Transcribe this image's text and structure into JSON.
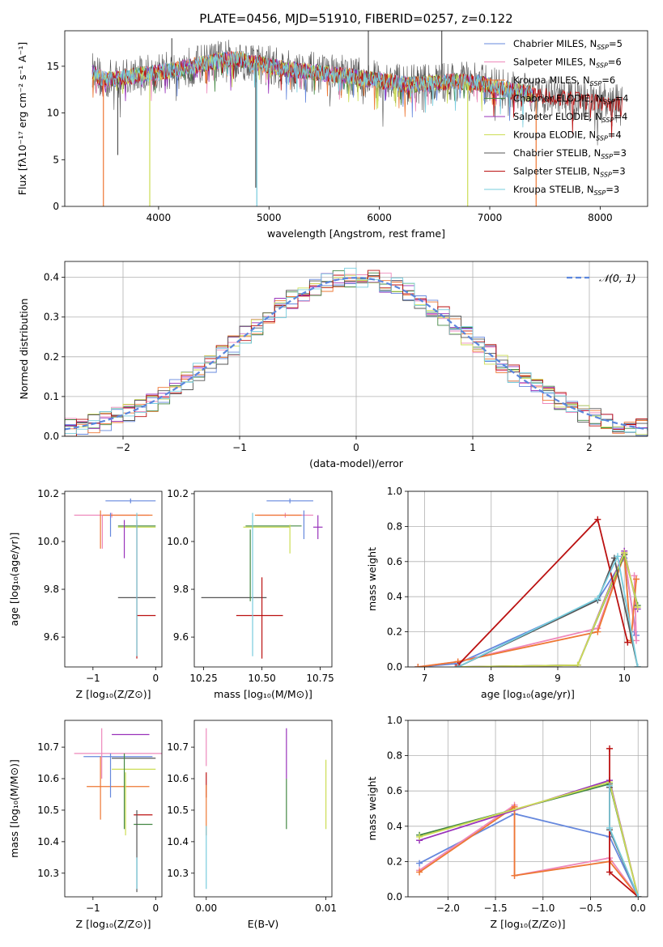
{
  "chart_data": [
    {
      "type": "line",
      "title": "PLATE=0456, MJD=51910, FIBERID=0257, z=0.122",
      "xlabel": "wavelength [Angstrom, rest frame]",
      "ylabel": "Flux [fλ10⁻¹⁷ erg cm⁻² s⁻¹ A⁻¹]",
      "xlim": [
        3150,
        8430
      ],
      "ylim": [
        0,
        18.8
      ],
      "xticks": [
        "4000",
        "5000",
        "6000",
        "7000",
        "8000"
      ],
      "yticks": [
        "0",
        "5",
        "10",
        "15"
      ],
      "legend_position": "upper-right",
      "series": [
        {
          "name": "Chabrier MILES, N_SSP=5",
          "color": "#6688dd"
        },
        {
          "name": "Salpeter MILES, N_SSP=6",
          "color": "#ee88bb"
        },
        {
          "name": "Kroupa MILES, N_SSP=6",
          "color": "#ee7733"
        },
        {
          "name": "Chabrier ELODIE, N_SSP=4",
          "color": "#448844"
        },
        {
          "name": "Salpeter ELODIE, N_SSP=4",
          "color": "#9933bb"
        },
        {
          "name": "Kroupa ELODIE, N_SSP=4",
          "color": "#ccdd55"
        },
        {
          "name": "Chabrier STELIB, N_SSP=3",
          "color": "#555555"
        },
        {
          "name": "Salpeter STELIB, N_SSP=3",
          "color": "#bb1111"
        },
        {
          "name": "Kroupa STELIB, N_SSP=3",
          "color": "#77ccdd"
        }
      ],
      "spectrum_profile": {
        "x": [
          3400,
          3500,
          3700,
          3900,
          4100,
          4300,
          4500,
          4700,
          4900,
          5100,
          5300,
          5500,
          5700,
          5900,
          6100,
          6300,
          6500,
          6700,
          6900,
          7100,
          7300,
          7500,
          7700,
          7900,
          8100,
          8200
        ],
        "y": [
          14.5,
          13.5,
          13.8,
          14.2,
          14.5,
          15.0,
          15.5,
          15.8,
          15.3,
          14.8,
          14.5,
          14.2,
          14.0,
          13.6,
          13.3,
          13.0,
          13.2,
          13.4,
          13.2,
          12.6,
          12.2,
          11.8,
          11.5,
          11.2,
          11.0,
          10.8
        ]
      },
      "spikes": [
        {
          "x": 3500,
          "y": 0,
          "color": "#ee7733"
        },
        {
          "x": 3920,
          "y": 0,
          "color": "#ccdd55"
        },
        {
          "x": 4890,
          "y": 0,
          "color": "#77ccdd"
        },
        {
          "x": 6800,
          "y": 0,
          "color": "#ccdd55"
        },
        {
          "x": 7420,
          "y": 0,
          "color": "#ee7733"
        },
        {
          "x": 3630,
          "y": 5.5,
          "color": "#555555"
        },
        {
          "x": 4880,
          "y": 2.0,
          "color": "#555555"
        },
        {
          "x": 6565,
          "y": 18.8,
          "color": "#555555"
        },
        {
          "x": 5900,
          "y": 18.8,
          "color": "#555555"
        },
        {
          "x": 4120,
          "y": 18.0,
          "color": "#555555"
        }
      ]
    },
    {
      "type": "step",
      "xlabel": "(data-model)/error",
      "ylabel": "Normed distribution",
      "xlim": [
        -2.5,
        2.5
      ],
      "ylim": [
        0,
        0.44
      ],
      "xticks": [
        "−2",
        "−1",
        "0",
        "1",
        "2"
      ],
      "yticks": [
        "0.0",
        "0.1",
        "0.2",
        "0.3",
        "0.4"
      ],
      "legend": "𝒩(0, 1)",
      "legend_position": "upper-right",
      "gaussian": {
        "mean": 0,
        "sigma": 1
      },
      "bin_width": 0.1
    },
    {
      "type": "errorbar",
      "xlabel": "Z [log₁₀(Z/Z⊙)]",
      "ylabel": "age  [log₁₀(age/yr)]",
      "xlim": [
        -1.45,
        0.1
      ],
      "ylim": [
        9.475,
        10.21
      ],
      "xticks": [
        "−1",
        "0"
      ],
      "yticks": [
        "9.6",
        "9.8",
        "10.0",
        "10.2"
      ],
      "points": [
        {
          "x": -0.4,
          "xerr": 0.4,
          "y": 10.17,
          "yerr": 0.01,
          "color": "#6688dd"
        },
        {
          "x": -0.7,
          "xerr": 0.6,
          "y": 10.11,
          "yerr": 0.01,
          "color": "#ee88bb"
        },
        {
          "x": -0.45,
          "xerr": 0.4,
          "y": 10.11,
          "yerr": 0.0,
          "color": "#ee7733"
        },
        {
          "x": -0.3,
          "xerr": 0.3,
          "y": 10.065,
          "yerr": 0.0,
          "color": "#448844"
        },
        {
          "x": -0.3,
          "xerr": 0.3,
          "y": 10.06,
          "yerr": 0.0,
          "color": "#ccdd55"
        },
        {
          "x": -0.3,
          "xerr": 0.3,
          "y": 9.765,
          "yerr": 0.0,
          "color": "#555555"
        },
        {
          "x": -0.15,
          "xerr": 0.15,
          "y": 9.69,
          "yerr": 0.0,
          "color": "#bb1111"
        },
        {
          "x": -0.72,
          "xerr": 0.0,
          "y": 10.07,
          "yerr": 0.05,
          "color": "#6688dd"
        },
        {
          "x": -0.88,
          "xerr": 0.0,
          "y": 10.05,
          "yerr": 0.08,
          "color": "#ee7733"
        },
        {
          "x": -0.85,
          "xerr": 0.0,
          "y": 10.04,
          "yerr": 0.07,
          "color": "#ee88bb"
        },
        {
          "x": -0.5,
          "xerr": 0.0,
          "y": 10.01,
          "yerr": 0.08,
          "color": "#9933bb"
        },
        {
          "x": -0.3,
          "xerr": 0.0,
          "y": 9.8,
          "yerr": 0.29,
          "color": "#bb1111"
        },
        {
          "x": -0.3,
          "xerr": 0.0,
          "y": 9.82,
          "yerr": 0.3,
          "color": "#77ccdd"
        }
      ]
    },
    {
      "type": "errorbar",
      "xlabel": "mass [log₁₀(M/M⊙)]",
      "xlim": [
        10.21,
        10.8
      ],
      "ylim": [
        9.475,
        10.21
      ],
      "xticks": [
        "10.25",
        "10.50",
        "10.75"
      ],
      "yticks": [
        "9.6",
        "9.8",
        "10.0",
        "10.2"
      ],
      "points": [
        {
          "x": 10.62,
          "xerr": 0.1,
          "y": 10.17,
          "yerr": 0.01,
          "color": "#6688dd"
        },
        {
          "x": 10.6,
          "xerr": 0.12,
          "y": 10.11,
          "yerr": 0.01,
          "color": "#ee88bb"
        },
        {
          "x": 10.57,
          "xerr": 0.1,
          "y": 10.11,
          "yerr": 0.0,
          "color": "#ee7733"
        },
        {
          "x": 10.55,
          "xerr": 0.12,
          "y": 10.065,
          "yerr": 0.0,
          "color": "#448844"
        },
        {
          "x": 10.52,
          "xerr": 0.1,
          "y": 10.06,
          "yerr": 0.0,
          "color": "#ccdd55"
        },
        {
          "x": 10.38,
          "xerr": 0.14,
          "y": 9.765,
          "yerr": 0.0,
          "color": "#555555"
        },
        {
          "x": 10.49,
          "xerr": 0.1,
          "y": 9.69,
          "yerr": 0.0,
          "color": "#bb1111"
        },
        {
          "x": 10.74,
          "xerr": 0.02,
          "y": 10.06,
          "yerr": 0.05,
          "color": "#9933bb"
        },
        {
          "x": 10.68,
          "xerr": 0.0,
          "y": 10.07,
          "yerr": 0.06,
          "color": "#6688dd"
        },
        {
          "x": 10.46,
          "xerr": 0.0,
          "y": 9.82,
          "yerr": 0.3,
          "color": "#77ccdd"
        },
        {
          "x": 10.5,
          "xerr": 0.0,
          "y": 9.68,
          "yerr": 0.17,
          "color": "#bb1111"
        },
        {
          "x": 10.45,
          "xerr": 0.0,
          "y": 9.9,
          "yerr": 0.15,
          "color": "#448844"
        },
        {
          "x": 10.62,
          "xerr": 0.0,
          "y": 10.01,
          "yerr": 0.06,
          "color": "#ccdd55"
        }
      ]
    },
    {
      "type": "line",
      "xlabel": "age  [log₁₀(age/yr)]",
      "ylabel": "mass weight",
      "xlim": [
        6.75,
        10.35
      ],
      "ylim": [
        0,
        1.0
      ],
      "xticks": [
        "7",
        "8",
        "9",
        "10"
      ],
      "yticks": [
        "0.0",
        "0.2",
        "0.4",
        "0.6",
        "0.8",
        "1.0"
      ],
      "series": [
        {
          "color": "#6688dd",
          "x": [
            6.9,
            7.5,
            9.6,
            10.0,
            10.18,
            10.15
          ],
          "y": [
            0.0,
            0.02,
            0.38,
            0.62,
            0.18,
            0.2
          ]
        },
        {
          "color": "#ee88bb",
          "x": [
            6.9,
            7.5,
            9.6,
            10.0,
            10.18,
            10.15
          ],
          "y": [
            0.0,
            0.03,
            0.22,
            0.65,
            0.15,
            0.52
          ]
        },
        {
          "color": "#ee7733",
          "x": [
            6.9,
            7.5,
            9.6,
            10.0,
            10.1,
            10.18
          ],
          "y": [
            0.0,
            0.03,
            0.2,
            0.64,
            0.15,
            0.5
          ]
        },
        {
          "color": "#448844",
          "x": [
            7.5,
            9.3,
            10.0,
            10.2
          ],
          "y": [
            0.0,
            0.01,
            0.64,
            0.35
          ]
        },
        {
          "color": "#9933bb",
          "x": [
            7.5,
            9.3,
            10.0,
            10.2
          ],
          "y": [
            0.0,
            0.01,
            0.66,
            0.33
          ]
        },
        {
          "color": "#ccdd55",
          "x": [
            7.5,
            9.3,
            10.0,
            10.2
          ],
          "y": [
            0.0,
            0.01,
            0.65,
            0.34
          ]
        },
        {
          "color": "#555555",
          "x": [
            7.5,
            9.6,
            9.85,
            10.2
          ],
          "y": [
            0.0,
            0.38,
            0.62,
            0.0
          ]
        },
        {
          "color": "#bb1111",
          "x": [
            7.5,
            9.6,
            10.05
          ],
          "y": [
            0.01,
            0.84,
            0.14
          ]
        },
        {
          "color": "#77ccdd",
          "x": [
            7.5,
            9.6,
            9.9,
            10.2
          ],
          "y": [
            0.0,
            0.39,
            0.63,
            0.0
          ]
        }
      ]
    },
    {
      "type": "errorbar",
      "xlabel": "Z [log₁₀(Z/Z⊙)]",
      "ylabel": "mass [log₁₀(M/M⊙)]",
      "xlim": [
        -1.45,
        0.1
      ],
      "ylim": [
        10.225,
        10.785
      ],
      "xticks": [
        "−1",
        "0"
      ],
      "yticks": [
        "10.3",
        "10.4",
        "10.5",
        "10.6",
        "10.7"
      ],
      "points": [
        {
          "x": -0.55,
          "xerr": 0.75,
          "y": 10.68,
          "yerr": 0.0,
          "color": "#ee88bb"
        },
        {
          "x": -0.4,
          "xerr": 0.3,
          "y": 10.74,
          "yerr": 0.0,
          "color": "#9933bb"
        },
        {
          "x": -0.6,
          "xerr": 0.55,
          "y": 10.67,
          "yerr": 0.0,
          "color": "#6688dd"
        },
        {
          "x": -0.35,
          "xerr": 0.35,
          "y": 10.665,
          "yerr": 0.0,
          "color": "#555555"
        },
        {
          "x": -0.35,
          "xerr": 0.35,
          "y": 10.63,
          "yerr": 0.0,
          "color": "#ccdd55"
        },
        {
          "x": -0.6,
          "xerr": 0.5,
          "y": 10.575,
          "yerr": 0.0,
          "color": "#ee7733"
        },
        {
          "x": -0.2,
          "xerr": 0.15,
          "y": 10.485,
          "yerr": 0.0,
          "color": "#bb1111"
        },
        {
          "x": -0.2,
          "xerr": 0.15,
          "y": 10.455,
          "yerr": 0.0,
          "color": "#448844"
        },
        {
          "x": -0.72,
          "xerr": 0.0,
          "y": 10.61,
          "yerr": 0.07,
          "color": "#6688dd"
        },
        {
          "x": -0.88,
          "xerr": 0.0,
          "y": 10.57,
          "yerr": 0.1,
          "color": "#ee7733"
        },
        {
          "x": -0.86,
          "xerr": 0.0,
          "y": 10.68,
          "yerr": 0.08,
          "color": "#ee88bb"
        },
        {
          "x": -0.5,
          "xerr": 0.0,
          "y": 10.56,
          "yerr": 0.12,
          "color": "#448844"
        },
        {
          "x": -0.48,
          "xerr": 0.0,
          "y": 10.52,
          "yerr": 0.1,
          "color": "#ccdd55"
        },
        {
          "x": -0.3,
          "xerr": 0.0,
          "y": 10.37,
          "yerr": 0.13,
          "color": "#555555"
        },
        {
          "x": -0.3,
          "xerr": 0.0,
          "y": 10.3,
          "yerr": 0.05,
          "color": "#77ccdd"
        }
      ]
    },
    {
      "type": "errorbar",
      "xlabel": "E(B-V)",
      "xlim": [
        -0.001,
        0.0105
      ],
      "ylim": [
        10.225,
        10.785
      ],
      "xticks": [
        "0.00",
        "0.01"
      ],
      "yticks": [
        "10.3",
        "10.4",
        "10.5",
        "10.6",
        "10.7"
      ],
      "points": [
        {
          "x": 0.0,
          "xerr": 0.0,
          "y": 10.7,
          "yerr": 0.06,
          "color": "#ee88bb"
        },
        {
          "x": 0.0,
          "xerr": 0.0,
          "y": 10.58,
          "yerr": 0.04,
          "color": "#bb1111"
        },
        {
          "x": 0.0,
          "xerr": 0.0,
          "y": 10.5,
          "yerr": 0.08,
          "color": "#ee7733"
        },
        {
          "x": 0.0,
          "xerr": 0.0,
          "y": 10.35,
          "yerr": 0.1,
          "color": "#77ccdd"
        },
        {
          "x": 0.0067,
          "xerr": 0.0,
          "y": 10.68,
          "yerr": 0.08,
          "color": "#9933bb"
        },
        {
          "x": 0.0067,
          "xerr": 0.0,
          "y": 10.52,
          "yerr": 0.08,
          "color": "#448844"
        },
        {
          "x": 0.01,
          "xerr": 0.0,
          "y": 10.55,
          "yerr": 0.11,
          "color": "#ccdd55"
        }
      ]
    },
    {
      "type": "line",
      "xlabel": "Z [log₁₀(Z/Z⊙)]",
      "ylabel": "mass weight",
      "xlim": [
        -2.42,
        0.1
      ],
      "ylim": [
        0,
        1.0
      ],
      "xticks": [
        "−2.0",
        "−1.5",
        "−1.0",
        "−0.5",
        "0.0"
      ],
      "yticks": [
        "0.0",
        "0.2",
        "0.4",
        "0.6",
        "0.8",
        "1.0"
      ],
      "series": [
        {
          "color": "#6688dd",
          "x": [
            -2.3,
            -1.3,
            -0.3,
            0.0
          ],
          "y": [
            0.19,
            0.47,
            0.34,
            0.0
          ]
        },
        {
          "color": "#ee88bb",
          "x": [
            -2.3,
            -1.3,
            -1.3,
            -0.3,
            0.0
          ],
          "y": [
            0.15,
            0.52,
            0.12,
            0.22,
            0.0
          ]
        },
        {
          "color": "#ee7733",
          "x": [
            -2.3,
            -1.3,
            -1.3,
            -0.3,
            0.0
          ],
          "y": [
            0.14,
            0.51,
            0.12,
            0.2,
            0.0
          ]
        },
        {
          "color": "#448844",
          "x": [
            -2.3,
            -0.3,
            0.0
          ],
          "y": [
            0.35,
            0.64,
            0.0
          ]
        },
        {
          "color": "#9933bb",
          "x": [
            -2.3,
            -0.3,
            0.0
          ],
          "y": [
            0.32,
            0.66,
            0.0
          ]
        },
        {
          "color": "#ccdd55",
          "x": [
            -2.3,
            -0.3,
            0.0
          ],
          "y": [
            0.34,
            0.65,
            0.0
          ]
        },
        {
          "color": "#555555",
          "x": [
            -0.3,
            -0.3,
            0.0
          ],
          "y": [
            0.62,
            0.38,
            0.0
          ]
        },
        {
          "color": "#bb1111",
          "x": [
            -0.3,
            -0.3,
            0.0
          ],
          "y": [
            0.84,
            0.14,
            0.0
          ]
        },
        {
          "color": "#77ccdd",
          "x": [
            -0.3,
            -0.3,
            0.0
          ],
          "y": [
            0.63,
            0.39,
            0.0
          ]
        }
      ]
    }
  ]
}
